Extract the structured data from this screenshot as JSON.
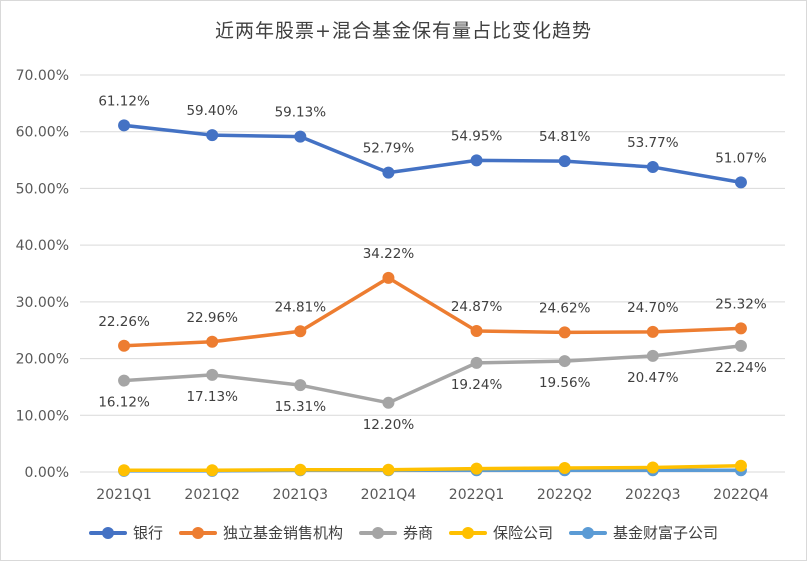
{
  "chart_data": {
    "type": "line",
    "title": "近两年股票+混合基金保有量占比变化趋势",
    "categories": [
      "2021Q1",
      "2021Q2",
      "2021Q3",
      "2021Q4",
      "2022Q1",
      "2022Q2",
      "2022Q3",
      "2022Q4"
    ],
    "ylim": [
      0,
      70
    ],
    "yticks": [
      "0.00%",
      "10.00%",
      "20.00%",
      "30.00%",
      "40.00%",
      "50.00%",
      "60.00%",
      "70.00%"
    ],
    "grid": true,
    "legend_position": "bottom",
    "series": [
      {
        "name": "银行",
        "color": "#4472c4",
        "values": [
          61.12,
          59.4,
          59.13,
          52.79,
          54.95,
          54.81,
          53.77,
          51.07
        ],
        "labels": [
          "61.12%",
          "59.40%",
          "59.13%",
          "52.79%",
          "54.95%",
          "54.81%",
          "53.77%",
          "51.07%"
        ],
        "label_pos": "above"
      },
      {
        "name": "独立基金销售机构",
        "color": "#ed7d31",
        "values": [
          22.26,
          22.96,
          24.81,
          34.22,
          24.87,
          24.62,
          24.7,
          25.32
        ],
        "labels": [
          "22.26%",
          "22.96%",
          "24.81%",
          "34.22%",
          "24.87%",
          "24.62%",
          "24.70%",
          "25.32%"
        ],
        "label_pos": "above"
      },
      {
        "name": "券商",
        "color": "#a5a5a5",
        "values": [
          16.12,
          17.13,
          15.31,
          12.2,
          19.24,
          19.56,
          20.47,
          22.24
        ],
        "labels": [
          "16.12%",
          "17.13%",
          "15.31%",
          "12.20%",
          "19.24%",
          "19.56%",
          "20.47%",
          "22.24%"
        ],
        "label_pos": "below"
      },
      {
        "name": "保险公司",
        "color": "#ffc000",
        "values": [
          0.3,
          0.3,
          0.4,
          0.4,
          0.6,
          0.7,
          0.8,
          1.1
        ],
        "labels": []
      },
      {
        "name": "基金财富子公司",
        "color": "#5b9bd5",
        "values": [
          0.2,
          0.2,
          0.3,
          0.3,
          0.3,
          0.3,
          0.3,
          0.3
        ],
        "labels": []
      }
    ]
  }
}
